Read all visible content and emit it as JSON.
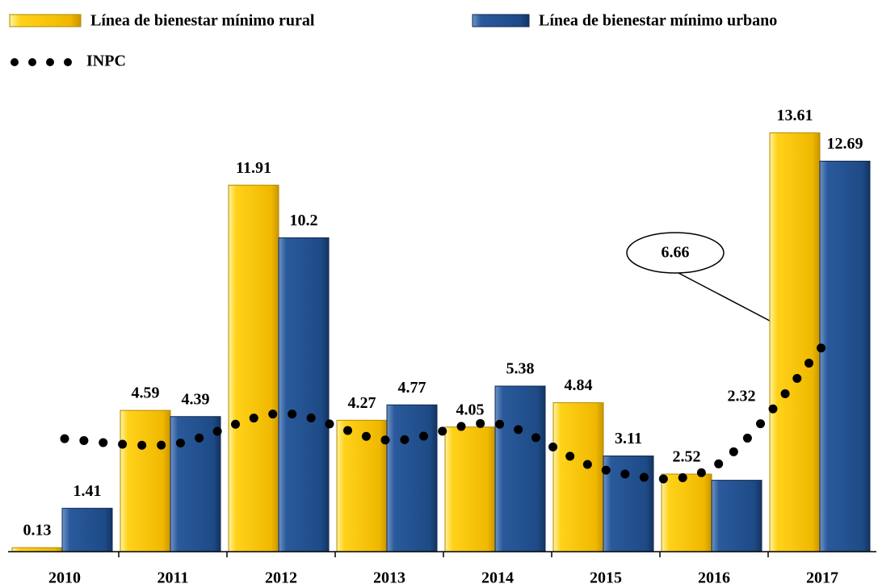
{
  "chart_data": {
    "type": "bar",
    "categories": [
      "2010",
      "2011",
      "2012",
      "2013",
      "2014",
      "2015",
      "2016",
      "2017"
    ],
    "series": [
      {
        "name": "Línea de bienestar mínimo rural",
        "color": "#f5c400",
        "values": [
          0.13,
          4.59,
          11.91,
          4.27,
          4.05,
          4.84,
          2.52,
          13.61
        ]
      },
      {
        "name": "Línea de bienestar mínimo urbano",
        "color": "#1f4e8c",
        "values": [
          1.41,
          4.39,
          10.2,
          4.77,
          5.38,
          3.11,
          2.32,
          12.69
        ]
      },
      {
        "name": "INPC",
        "type": "line",
        "color": "#000000",
        "values": [
          3.67,
          3.49,
          4.49,
          3.62,
          4.15,
          2.65,
          2.76,
          6.66
        ]
      }
    ],
    "ylim": [
      0,
      14.5
    ]
  }
}
